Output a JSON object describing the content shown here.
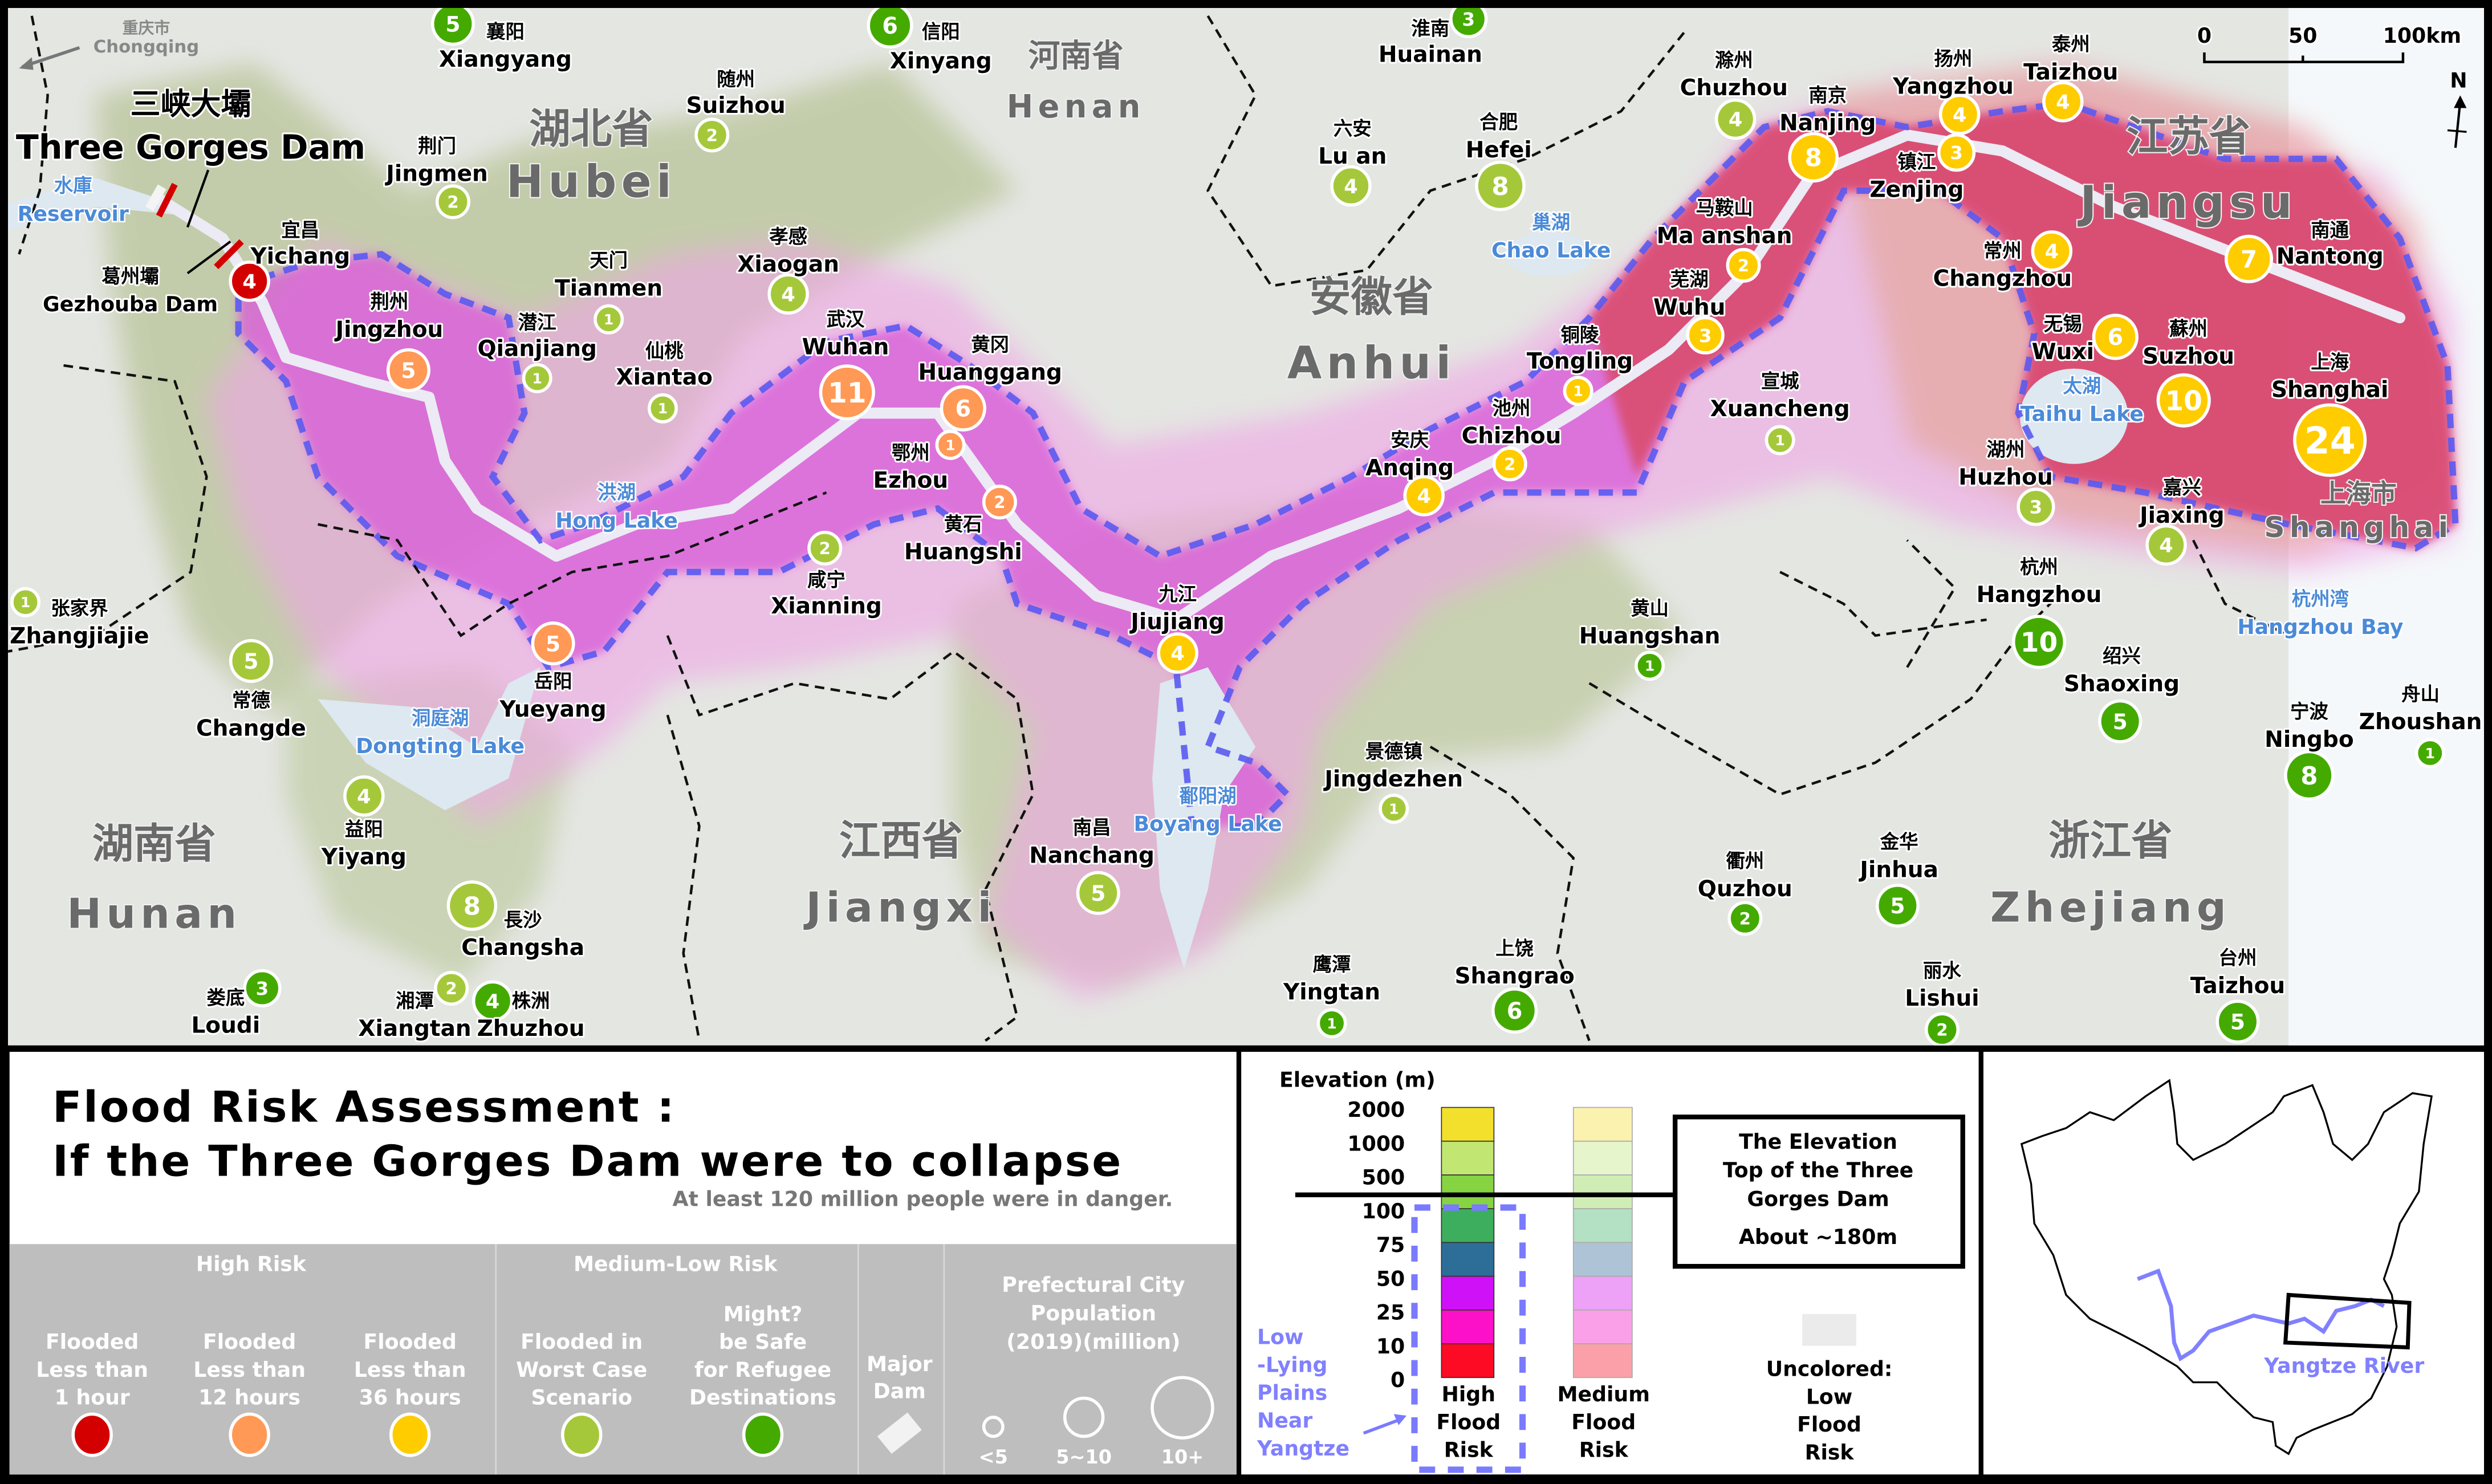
{
  "map": {
    "dam_label_zh": "三峡大壩",
    "dam_label_en": "Three Gorges Dam",
    "gezhouba_zh": "葛州壩",
    "gezhouba_en": "Gezhouba Dam",
    "reservoir_zh": "水庫",
    "reservoir_en": "Reservoir",
    "chongqing_zh": "重庆市",
    "chongqing_en": "Chongqing",
    "scale": {
      "t0": "0",
      "t1": "50",
      "t2": "100km"
    },
    "north": "N",
    "provinces": [
      {
        "zh": "湖北省",
        "en": "Hubei"
      },
      {
        "zh": "河南省",
        "en": "Henan"
      },
      {
        "zh": "安徽省",
        "en": "Anhui"
      },
      {
        "zh": "江苏省",
        "en": "Jiangsu"
      },
      {
        "zh": "湖南省",
        "en": "Hunan"
      },
      {
        "zh": "江西省",
        "en": "Jiangxi"
      },
      {
        "zh": "浙江省",
        "en": "Zhejiang"
      },
      {
        "zh": "上海市",
        "en": "Shanghai"
      }
    ],
    "waters": [
      {
        "zh": "洪湖",
        "en": "Hong Lake"
      },
      {
        "zh": "洞庭湖",
        "en": "Dongting Lake"
      },
      {
        "zh": "鄱阳湖",
        "en": "Boyang Lake"
      },
      {
        "zh": "巢湖",
        "en": "Chao Lake"
      },
      {
        "zh": "太湖",
        "en": "Taihu Lake"
      },
      {
        "zh": "杭州湾",
        "en": "Hangzhou Bay"
      }
    ],
    "cities": [
      {
        "zh": "襄阳",
        "en": "Xiangyang",
        "pop": 5,
        "risk": "safe"
      },
      {
        "zh": "信阳",
        "en": "Xinyang",
        "pop": 6,
        "risk": "safe"
      },
      {
        "zh": "淮南",
        "en": "Huainan",
        "pop": 3,
        "risk": "safe"
      },
      {
        "zh": "随州",
        "en": "Suizhou",
        "pop": 2,
        "risk": "worst"
      },
      {
        "zh": "荆门",
        "en": "Jingmen",
        "pop": 2,
        "risk": "worst"
      },
      {
        "zh": "宜昌",
        "en": "Yichang",
        "pop": 4,
        "risk": "1h"
      },
      {
        "zh": "荆州",
        "en": "Jingzhou",
        "pop": 5,
        "risk": "12h"
      },
      {
        "zh": "天门",
        "en": "Tianmen",
        "pop": 1,
        "risk": "worst"
      },
      {
        "zh": "潜江",
        "en": "Qianjiang",
        "pop": 1,
        "risk": "worst"
      },
      {
        "zh": "仙桃",
        "en": "Xiantao",
        "pop": 1,
        "risk": "worst"
      },
      {
        "zh": "孝感",
        "en": "Xiaogan",
        "pop": 4,
        "risk": "worst"
      },
      {
        "zh": "武汉",
        "en": "Wuhan",
        "pop": 11,
        "risk": "12h"
      },
      {
        "zh": "黄冈",
        "en": "Huanggang",
        "pop": 6,
        "risk": "12h"
      },
      {
        "zh": "鄂州",
        "en": "Ezhou",
        "pop": 1,
        "risk": "12h"
      },
      {
        "zh": "黄石",
        "en": "Huangshi",
        "pop": 2,
        "risk": "12h"
      },
      {
        "zh": "咸宁",
        "en": "Xianning",
        "pop": 2,
        "risk": "worst"
      },
      {
        "zh": "岳阳",
        "en": "Yueyang",
        "pop": 5,
        "risk": "12h"
      },
      {
        "zh": "张家界",
        "en": "Zhangjiajie",
        "pop": 1,
        "risk": "worst"
      },
      {
        "zh": "常德",
        "en": "Changde",
        "pop": 5,
        "risk": "worst"
      },
      {
        "zh": "益阳",
        "en": "Yiyang",
        "pop": 4,
        "risk": "worst"
      },
      {
        "zh": "長沙",
        "en": "Changsha",
        "pop": 8,
        "risk": "worst"
      },
      {
        "zh": "娄底",
        "en": "Loudi",
        "pop": 3,
        "risk": "safe"
      },
      {
        "zh": "湘潭",
        "en": "Xiangtan",
        "pop": 2,
        "risk": "worst"
      },
      {
        "zh": "株洲",
        "en": "Zhuzhou",
        "pop": 4,
        "risk": "safe"
      },
      {
        "zh": "九江",
        "en": "Jiujiang",
        "pop": 4,
        "risk": "36h"
      },
      {
        "zh": "南昌",
        "en": "Nanchang",
        "pop": 5,
        "risk": "worst"
      },
      {
        "zh": "景德镇",
        "en": "Jingdezhen",
        "pop": 1,
        "risk": "worst"
      },
      {
        "zh": "鹰潭",
        "en": "Yingtan",
        "pop": 1,
        "risk": "safe"
      },
      {
        "zh": "上饶",
        "en": "Shangrao",
        "pop": 6,
        "risk": "safe"
      },
      {
        "zh": "衢州",
        "en": "Quzhou",
        "pop": 2,
        "risk": "safe"
      },
      {
        "zh": "金华",
        "en": "Jinhua",
        "pop": 5,
        "risk": "safe"
      },
      {
        "zh": "丽水",
        "en": "Lishui",
        "pop": 2,
        "risk": "safe"
      },
      {
        "zh": "台州",
        "en": "Taizhou",
        "pop": 5,
        "risk": "safe"
      },
      {
        "zh": "宁波",
        "en": "Ningbo",
        "pop": 8,
        "risk": "safe"
      },
      {
        "zh": "舟山",
        "en": "Zhoushan",
        "pop": 1,
        "risk": "safe"
      },
      {
        "zh": "绍兴",
        "en": "Shaoxing",
        "pop": 5,
        "risk": "safe"
      },
      {
        "zh": "杭州",
        "en": "Hangzhou",
        "pop": 10,
        "risk": "safe"
      },
      {
        "zh": "嘉兴",
        "en": "Jiaxing",
        "pop": 4,
        "risk": "worst"
      },
      {
        "zh": "湖州",
        "en": "Huzhou",
        "pop": 3,
        "risk": "worst"
      },
      {
        "zh": "无锡",
        "en": "Wuxi",
        "pop": 6,
        "risk": "36h"
      },
      {
        "zh": "蘇州",
        "en": "Suzhou",
        "pop": 10,
        "risk": "36h"
      },
      {
        "zh": "上海",
        "en": "Shanghai",
        "pop": 24,
        "risk": "36h"
      },
      {
        "zh": "南通",
        "en": "Nantong",
        "pop": 7,
        "risk": "36h"
      },
      {
        "zh": "常州",
        "en": "Changzhou",
        "pop": 4,
        "risk": "36h"
      },
      {
        "zh": "镇江",
        "en": "Zenjing",
        "pop": 3,
        "risk": "36h"
      },
      {
        "zh": "扬州",
        "en": "Yangzhou",
        "pop": 4,
        "risk": "36h"
      },
      {
        "zh": "泰州",
        "en": "Taizhou",
        "pop": 4,
        "risk": "36h"
      },
      {
        "zh": "南京",
        "en": "Nanjing",
        "pop": 8,
        "risk": "36h"
      },
      {
        "zh": "滁州",
        "en": "Chuzhou",
        "pop": 4,
        "risk": "worst"
      },
      {
        "zh": "马鞍山",
        "en": "Ma anshan",
        "pop": 2,
        "risk": "36h"
      },
      {
        "zh": "芜湖",
        "en": "Wuhu",
        "pop": 3,
        "risk": "36h"
      },
      {
        "zh": "铜陵",
        "en": "Tongling",
        "pop": 1,
        "risk": "36h"
      },
      {
        "zh": "池州",
        "en": "Chizhou",
        "pop": 2,
        "risk": "36h"
      },
      {
        "zh": "安庆",
        "en": "Anqing",
        "pop": 4,
        "risk": "36h"
      },
      {
        "zh": "宣城",
        "en": "Xuancheng",
        "pop": 1,
        "risk": "worst"
      },
      {
        "zh": "黄山",
        "en": "Huangshan",
        "pop": 1,
        "risk": "safe"
      },
      {
        "zh": "六安",
        "en": "Lu an",
        "pop": 4,
        "risk": "worst"
      },
      {
        "zh": "合肥",
        "en": "Hefei",
        "pop": 8,
        "risk": "worst"
      }
    ]
  },
  "title": {
    "line1": "Flood Risk Assessment :",
    "line2": "If the Three Gorges Dam were to collapse",
    "subtitle": "At least 120 million people were in danger."
  },
  "legend": {
    "risk_colors": {
      "1h": "#d40000",
      "12h": "#ff9955",
      "36h": "#ffcc00",
      "worst": "#a5c83a",
      "safe": "#44aa00"
    },
    "high_risk": "High Risk",
    "medium_low_risk": "Medium-Low Risk",
    "items": [
      {
        "lines": [
          "Flooded",
          "Less than",
          "1 hour"
        ],
        "color": "#d40000"
      },
      {
        "lines": [
          "Flooded",
          "Less than",
          "12 hours"
        ],
        "color": "#ff9955"
      },
      {
        "lines": [
          "Flooded",
          "Less than",
          "36 hours"
        ],
        "color": "#ffcc00"
      },
      {
        "lines": [
          "Flooded in",
          "Worst Case",
          "Scenario"
        ],
        "color": "#a5c83a"
      },
      {
        "lines": [
          "Might?",
          "be Safe",
          "for Refugee",
          "Destinations"
        ],
        "color": "#44aa00"
      }
    ],
    "major_dam": [
      "Major",
      "Dam"
    ],
    "population": {
      "lines": [
        "Prefectural City",
        "Population",
        "(2019)(million)"
      ],
      "sizes": [
        "<5",
        "5~10",
        "10+"
      ]
    }
  },
  "elevation": {
    "title": "Elevation (m)",
    "ticks": [
      "2000",
      "1000",
      "500",
      "100",
      "75",
      "50",
      "25",
      "10",
      "0"
    ],
    "high_colors": [
      "#f3e02d",
      "#c2e672",
      "#86d442",
      "#3dae5d",
      "#2d6e99",
      "#cf11f7",
      "#fc11c8",
      "#fd0a25"
    ],
    "medium_colors": [
      "#fbf2b0",
      "#e6f5cc",
      "#d0edb6",
      "#b4e0c3",
      "#aec4d6",
      "#eda1f7",
      "#faa0e8",
      "#fba0a8"
    ],
    "high_label": [
      "High",
      "Flood",
      "Risk"
    ],
    "medium_label": [
      "Medium",
      "Flood",
      "Risk"
    ],
    "low_lying": [
      "Low",
      "-Lying",
      "Plains",
      "Near",
      "Yangtze"
    ],
    "dam_box": [
      "The Elevation",
      "Top of the Three",
      "Gorges Dam",
      "About ~180m"
    ],
    "uncolored": [
      "Uncolored:",
      "Low",
      "Flood",
      "Risk"
    ],
    "uncolored_color": "#ebebeb"
  },
  "inset": {
    "river_label": "Yangtze River",
    "river_color": "#8080ff"
  }
}
